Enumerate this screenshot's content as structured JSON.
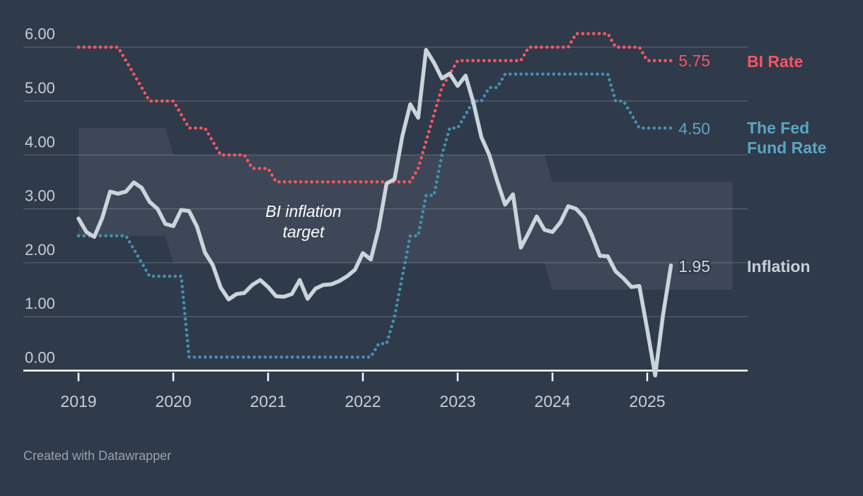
{
  "theme": {
    "background": "#2f3a4b",
    "grid_line": "rgba(255,255,255,0.24)",
    "axis_line": "#ffffff",
    "tick_label_color": "#c7ced6",
    "band_fill": "rgba(255,255,255,0.07)",
    "annotation_color": "#fdfdfe",
    "footer_color": "#98a1ac"
  },
  "footer": {
    "credit": "Created with Datawrapper"
  },
  "chart_data": {
    "type": "line",
    "title": "",
    "x_axis": {
      "tick_labels": [
        "2019",
        "2020",
        "2021",
        "2022",
        "2023",
        "2024",
        "2025"
      ],
      "start": "2019-01",
      "end": "2025-04",
      "interval": "monthly"
    },
    "y_axis": {
      "tick_labels": [
        "0.00",
        "1.00",
        "2.00",
        "3.00",
        "4.00",
        "5.00",
        "6.00"
      ],
      "min": 0,
      "max": 6,
      "grid": true
    },
    "band": {
      "label": "BI inflation target",
      "label_lines": [
        "BI inflation",
        "target"
      ],
      "points_high": [
        [
          0,
          4.5
        ],
        [
          11,
          4.5
        ],
        [
          12,
          4.0
        ],
        [
          59,
          4.0
        ],
        [
          60,
          3.5
        ],
        [
          82.8,
          3.5
        ]
      ],
      "points_low": [
        [
          0,
          2.5
        ],
        [
          11,
          2.5
        ],
        [
          12,
          2.0
        ],
        [
          59,
          2.0
        ],
        [
          60,
          1.5
        ],
        [
          82.8,
          1.5
        ]
      ]
    },
    "series": [
      {
        "name": "BI Rate",
        "style": "dotted",
        "color": "#f4565f",
        "text_color": "#f4565f",
        "end_value_label": "5.75",
        "values": [
          6,
          6,
          6,
          6,
          6,
          6,
          5.75,
          5.5,
          5.25,
          5,
          5,
          5,
          5,
          4.75,
          4.5,
          4.5,
          4.5,
          4.25,
          4,
          4,
          4,
          4,
          3.75,
          3.75,
          3.75,
          3.5,
          3.5,
          3.5,
          3.5,
          3.5,
          3.5,
          3.5,
          3.5,
          3.5,
          3.5,
          3.5,
          3.5,
          3.5,
          3.5,
          3.5,
          3.5,
          3.5,
          3.5,
          3.75,
          4.25,
          4.75,
          5.25,
          5.5,
          5.75,
          5.75,
          5.75,
          5.75,
          5.75,
          5.75,
          5.75,
          5.75,
          5.75,
          6,
          6,
          6,
          6,
          6,
          6,
          6.25,
          6.25,
          6.25,
          6.25,
          6.25,
          6,
          6,
          6,
          6,
          5.75,
          5.75,
          5.75,
          5.75
        ]
      },
      {
        "name": "The Fed Fund Rate",
        "label_lines": [
          "The Fed",
          "Fund Rate"
        ],
        "style": "dotted",
        "color": "#4391ae",
        "text_color": "#5aa6c2",
        "end_value_label": "4.50",
        "values": [
          2.5,
          2.5,
          2.5,
          2.5,
          2.5,
          2.5,
          2.5,
          2.25,
          2,
          1.75,
          1.75,
          1.75,
          1.75,
          1.75,
          0.25,
          0.25,
          0.25,
          0.25,
          0.25,
          0.25,
          0.25,
          0.25,
          0.25,
          0.25,
          0.25,
          0.25,
          0.25,
          0.25,
          0.25,
          0.25,
          0.25,
          0.25,
          0.25,
          0.25,
          0.25,
          0.25,
          0.25,
          0.25,
          0.5,
          0.5,
          1,
          1.75,
          2.5,
          2.5,
          3.25,
          3.25,
          4,
          4.5,
          4.5,
          4.75,
          5,
          5,
          5.25,
          5.25,
          5.5,
          5.5,
          5.5,
          5.5,
          5.5,
          5.5,
          5.5,
          5.5,
          5.5,
          5.5,
          5.5,
          5.5,
          5.5,
          5.5,
          5,
          5,
          4.75,
          4.5,
          4.5,
          4.5,
          4.5,
          4.5
        ]
      },
      {
        "name": "Inflation",
        "style": "solid",
        "color": "#c9d4db",
        "text_color": "#ccd5dc",
        "end_value_label": "1.95",
        "values": [
          2.82,
          2.57,
          2.48,
          2.83,
          3.32,
          3.28,
          3.32,
          3.49,
          3.39,
          3.13,
          3.0,
          2.72,
          2.68,
          2.98,
          2.96,
          2.67,
          2.19,
          1.96,
          1.54,
          1.32,
          1.42,
          1.44,
          1.59,
          1.68,
          1.55,
          1.38,
          1.37,
          1.42,
          1.68,
          1.33,
          1.52,
          1.59,
          1.6,
          1.66,
          1.75,
          1.87,
          2.18,
          2.06,
          2.64,
          3.47,
          3.55,
          4.35,
          4.94,
          4.69,
          5.95,
          5.71,
          5.42,
          5.51,
          5.28,
          5.47,
          4.97,
          4.33,
          4.0,
          3.52,
          3.08,
          3.27,
          2.28,
          2.56,
          2.86,
          2.61,
          2.57,
          2.75,
          3.05,
          3.0,
          2.84,
          2.51,
          2.13,
          2.12,
          1.84,
          1.71,
          1.55,
          1.57,
          0.76,
          -0.09,
          1.03,
          1.95
        ]
      }
    ],
    "legend_position": "right"
  }
}
